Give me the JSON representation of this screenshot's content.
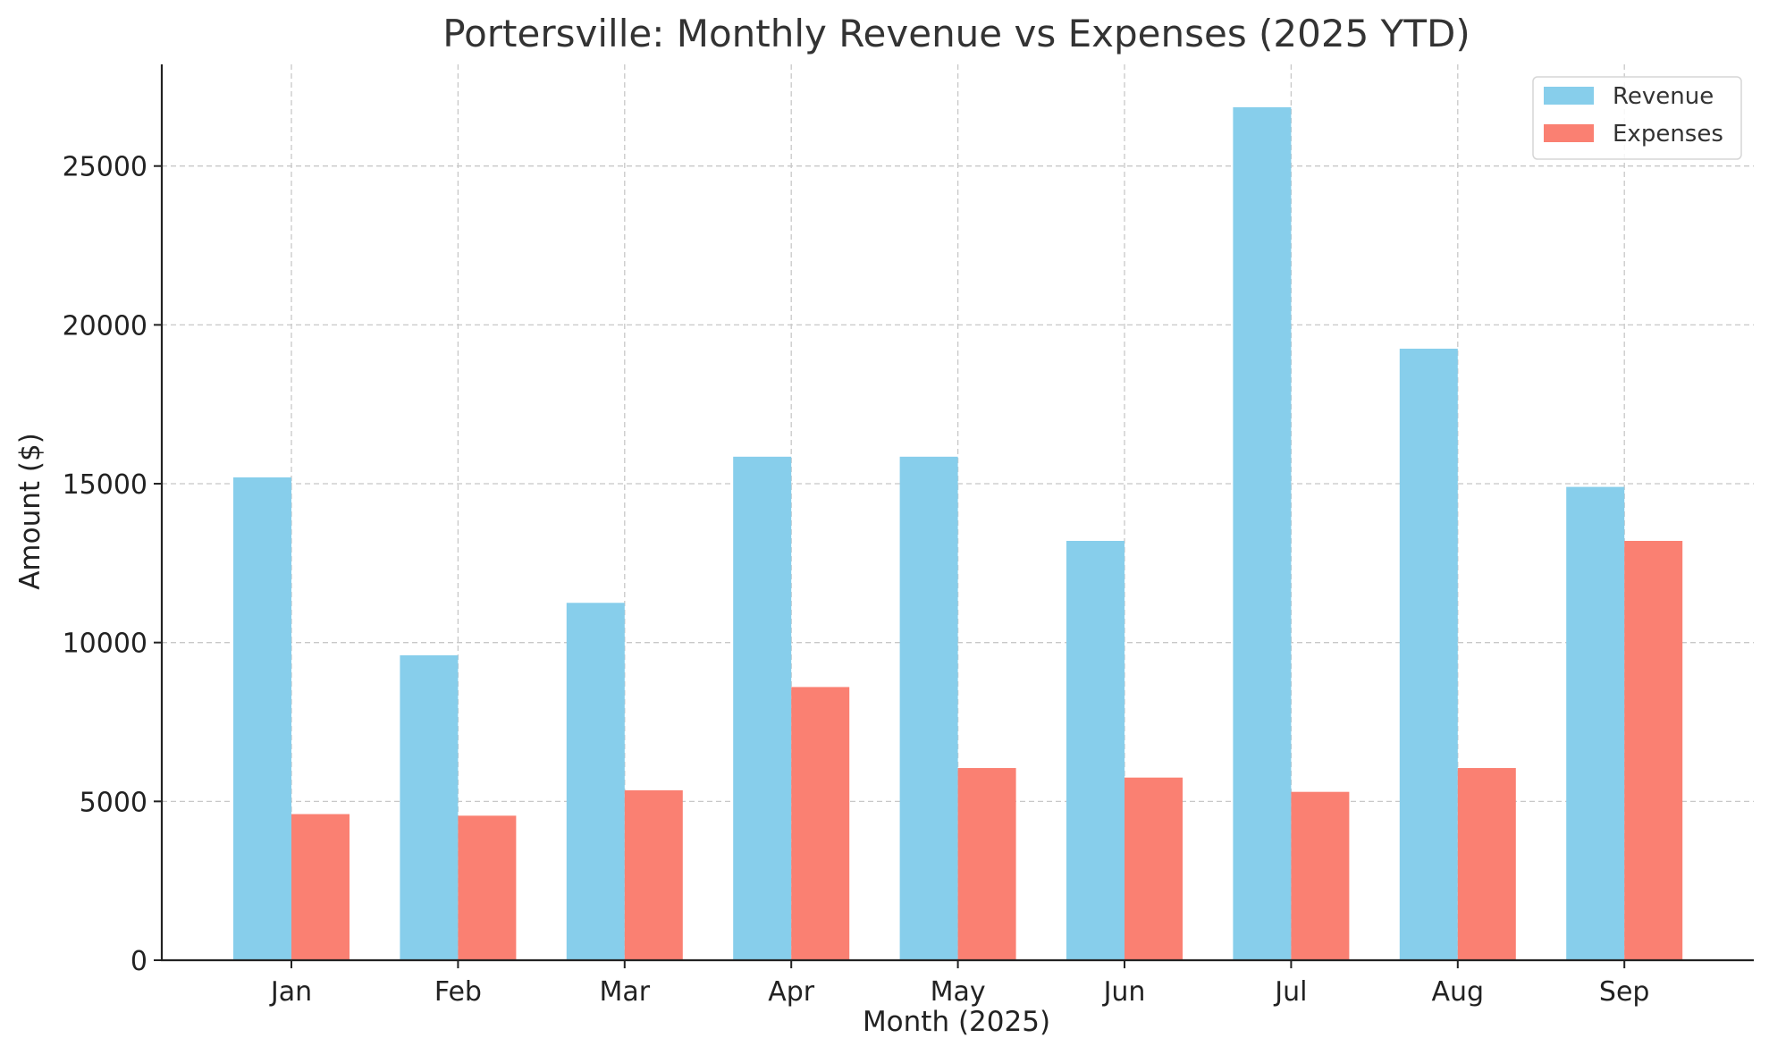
{
  "chart_data": {
    "type": "bar",
    "title": "Portersville: Monthly Revenue vs Expenses (2025 YTD)",
    "xlabel": "Month (2025)",
    "ylabel": "Amount ($)",
    "categories": [
      "Jan",
      "Feb",
      "Mar",
      "Apr",
      "May",
      "Jun",
      "Jul",
      "Aug",
      "Sep"
    ],
    "series": [
      {
        "name": "Revenue",
        "color": "#87CEEB",
        "values": [
          15200,
          9600,
          11250,
          15850,
          15850,
          13200,
          26850,
          19250,
          14900
        ]
      },
      {
        "name": "Expenses",
        "color": "#FA8072",
        "values": [
          4600,
          4550,
          5350,
          8600,
          6050,
          5750,
          5300,
          6050,
          13200
        ]
      }
    ],
    "ylim": [
      0,
      28200
    ],
    "yticks": [
      0,
      5000,
      10000,
      15000,
      20000,
      25000
    ],
    "grid": true,
    "legend_position": "top-right"
  }
}
